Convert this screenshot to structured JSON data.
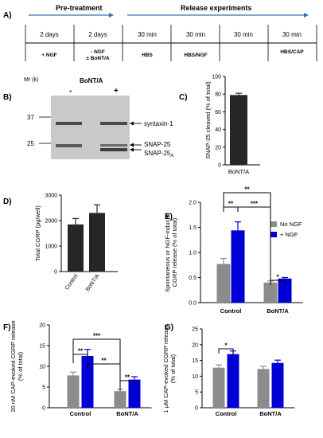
{
  "colors": {
    "timeline": "#2e75b6",
    "gray_bar": "#8c8c8c",
    "blue_bar": "#0000d6",
    "dark_bar": "#262626",
    "blot_bg": "#c9c9c9",
    "band": "#5a5a5a"
  },
  "panel_a": {
    "label": "A)",
    "pretreatment": "Pre-treatment",
    "release": "Release experiments",
    "durations": [
      "2 days",
      "2 days",
      "30 min",
      "30 min",
      "30 min"
    ],
    "conditions": [
      {
        "line1": "+ NGF",
        "line2": ""
      },
      {
        "line1": "- NGF",
        "line2": "± BoNT/A"
      },
      {
        "line1": "HBS",
        "line2": ""
      },
      {
        "line1": "HBS/NGF",
        "line2": ""
      },
      {
        "line1": "HBS/CAP",
        "line2": ""
      }
    ]
  },
  "panel_b": {
    "label": "B)",
    "mr": "Mr (k)",
    "title": "BoNT/A",
    "minus": "-",
    "plus": "+",
    "mw_37": "37",
    "mw_25": "25",
    "syntaxin": "syntaxin-1",
    "snap25": "SNAP-25",
    "snap25a_main": "SNAP-25",
    "snap25a_sub": "A"
  },
  "chart_data": [
    {
      "panel": "C)",
      "type": "bar",
      "categories": [
        "BoNT/A"
      ],
      "values": [
        79
      ],
      "errors": [
        2
      ],
      "ylabel": "SNAP-25 cleaved (% of total)",
      "ylim": [
        0,
        100
      ],
      "yticks": [
        "0",
        "20",
        "40",
        "60",
        "80",
        "100"
      ]
    },
    {
      "panel": "D)",
      "type": "bar",
      "categories": [
        "Control",
        "BoNT/A"
      ],
      "values": [
        1850,
        2300
      ],
      "errors": [
        230,
        320
      ],
      "ylabel": "Total CGRP (pg/well)",
      "ylim": [
        0,
        3000
      ],
      "yticks": [
        "0",
        "1000",
        "2000",
        "3000"
      ]
    },
    {
      "panel": "E)",
      "type": "bar",
      "categories": [
        "Control",
        "BoNT/A"
      ],
      "series": [
        {
          "name": "No NGF",
          "values": [
            0.77,
            0.4
          ],
          "errors": [
            0.11,
            0.03
          ]
        },
        {
          "name": "+ NGF",
          "values": [
            1.44,
            0.48
          ],
          "errors": [
            0.17,
            0.02
          ]
        }
      ],
      "ylabel_line1": "Spontaneous or NGF-induced",
      "ylabel_line2": "CGRP release (% of total)",
      "ylim": [
        0,
        2.0
      ],
      "yticks": [
        "0.0",
        "0.5",
        "1.0",
        "1.5",
        "2.0"
      ],
      "legend": "top-right",
      "significance": [
        "**",
        "**",
        "***",
        "*"
      ]
    },
    {
      "panel": "F)",
      "type": "bar",
      "categories": [
        "Control",
        "BoNT/A"
      ],
      "series": [
        {
          "name": "",
          "values": [
            7.8,
            4.0
          ],
          "errors": [
            0.8,
            0.5
          ]
        },
        {
          "name": "",
          "values": [
            12.5,
            6.8
          ],
          "errors": [
            1.6,
            0.7
          ]
        }
      ],
      "ylabel_line1": "20 nM CAP-evoked CGRP release",
      "ylabel_line2": "(% of total)",
      "ylim": [
        0,
        20
      ],
      "yticks": [
        "0",
        "5",
        "10",
        "15",
        "20"
      ],
      "significance": [
        "***",
        "**",
        "**",
        "**"
      ]
    },
    {
      "panel": "G)",
      "type": "bar",
      "categories": [
        "Control",
        "BoNT/A"
      ],
      "series": [
        {
          "name": "",
          "values": [
            12.7,
            12.3
          ],
          "errors": [
            0.9,
            0.8
          ]
        },
        {
          "name": "",
          "values": [
            17.0,
            14.2
          ],
          "errors": [
            1.0,
            0.9
          ]
        }
      ],
      "ylabel_line1": "1 μM CAP-evoked CGRP release",
      "ylabel_line2": "(% of total)",
      "ylim": [
        0,
        25
      ],
      "yticks": [
        "0",
        "5",
        "10",
        "15",
        "20",
        "25"
      ],
      "significance": [
        "*"
      ]
    }
  ]
}
